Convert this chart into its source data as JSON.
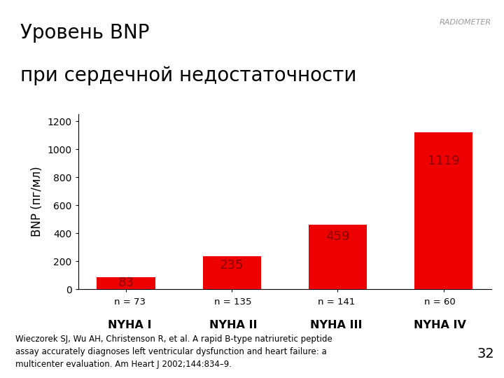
{
  "title_line1": "Уровень BNP",
  "title_line2": "при сердечной недостаточности",
  "categories": [
    "NYHA I",
    "NYHA II",
    "NYHA III",
    "NYHA IV"
  ],
  "n_labels": [
    "n = 73",
    "n = 135",
    "n = 141",
    "n = 60"
  ],
  "values": [
    83,
    235,
    459,
    1119
  ],
  "bar_color": "#EE0000",
  "ylabel": "BNP (пг/мл)",
  "ylim": [
    0,
    1250
  ],
  "yticks": [
    0,
    200,
    400,
    600,
    800,
    1000,
    1200
  ],
  "value_labels": [
    "83",
    "235",
    "459",
    "1119"
  ],
  "value_label_color": "#880000",
  "citation": "Wieczorek SJ, Wu AH, Christenson R, et al. A rapid B-type natriuretic peptide\nassay accurately diagnoses left ventricular dysfunction and heart failure: a\nmulticenter evaluation. Am Heart J 2002;144:834–9.",
  "page_number": "32",
  "bg_color": "#FFFFFF",
  "separator_color": "#AAAAAA",
  "title_fontsize": 20,
  "ylabel_fontsize": 12,
  "tick_fontsize": 10,
  "value_label_fontsize": 13,
  "citation_fontsize": 8.5,
  "radiometer_text": "RADIOMETER"
}
